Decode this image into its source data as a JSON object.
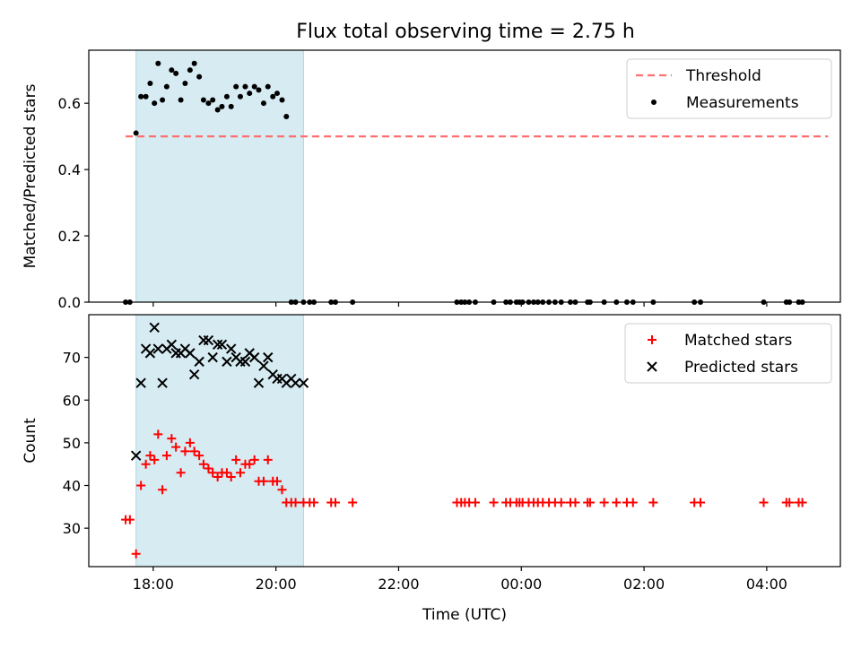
{
  "title": "Flux total observing time = 2.75 h",
  "colors": {
    "shade": "#add8e6",
    "threshold": "#ff6f6f",
    "matched": "#ff0000",
    "predicted": "#000000",
    "measurement": "#000000"
  },
  "chart_data": [
    {
      "type": "scatter",
      "panel": "top",
      "ylabel": "Matched/Predicted stars",
      "ylim": [
        0,
        0.76
      ],
      "yticks": [
        0.0,
        0.2,
        0.4,
        0.6
      ],
      "ytick_labels": [
        "0.0",
        "0.2",
        "0.4",
        "0.6"
      ],
      "xlim_hours": [
        16.95,
        29.2
      ],
      "grid": false,
      "legend": {
        "placement": "top-right",
        "entries": [
          "Threshold",
          "Measurements"
        ]
      },
      "shaded_span_hours": [
        17.72,
        20.45
      ],
      "threshold": {
        "name": "Threshold",
        "value": 0.5,
        "x_hours": [
          17.55,
          29.0
        ]
      },
      "series": [
        {
          "name": "Measurements",
          "x_hours": [
            17.55,
            17.62,
            17.72,
            17.8,
            17.88,
            17.95,
            18.02,
            18.08,
            18.15,
            18.22,
            18.3,
            18.37,
            18.45,
            18.52,
            18.6,
            18.67,
            18.75,
            18.82,
            18.9,
            18.97,
            19.05,
            19.12,
            19.2,
            19.27,
            19.35,
            19.42,
            19.5,
            19.57,
            19.65,
            19.72,
            19.8,
            19.87,
            19.95,
            20.02,
            20.1,
            20.17,
            20.25,
            20.32,
            20.45,
            20.55,
            20.62,
            20.9,
            20.97,
            21.25,
            22.95,
            23.02,
            23.08,
            23.15,
            23.25,
            23.55,
            23.75,
            23.82,
            23.92,
            23.97,
            24.02,
            24.12,
            24.2,
            24.27,
            24.35,
            24.45,
            24.55,
            24.65,
            24.8,
            24.88,
            25.08,
            25.12,
            25.35,
            25.55,
            25.72,
            25.82,
            26.15,
            26.82,
            26.92,
            27.95,
            28.32,
            28.37,
            28.52,
            28.58
          ],
          "y": [
            0,
            0,
            0.51,
            0.62,
            0.62,
            0.66,
            0.6,
            0.72,
            0.61,
            0.65,
            0.7,
            0.69,
            0.61,
            0.66,
            0.7,
            0.72,
            0.68,
            0.61,
            0.6,
            0.61,
            0.58,
            0.59,
            0.62,
            0.59,
            0.65,
            0.62,
            0.65,
            0.63,
            0.65,
            0.64,
            0.6,
            0.65,
            0.62,
            0.63,
            0.61,
            0.56,
            0,
            0,
            0,
            0,
            0,
            0,
            0,
            0,
            0,
            0,
            0,
            0,
            0,
            0,
            0,
            0,
            0,
            0,
            0,
            0,
            0,
            0,
            0,
            0,
            0,
            0,
            0,
            0,
            0,
            0,
            0,
            0,
            0,
            0,
            0,
            0,
            0,
            0,
            0,
            0,
            0,
            0
          ]
        }
      ]
    },
    {
      "type": "scatter",
      "panel": "bottom",
      "xlabel": "Time (UTC)",
      "ylabel": "Count",
      "ylim": [
        21,
        80
      ],
      "yticks": [
        30,
        40,
        50,
        60,
        70
      ],
      "ytick_labels": [
        "30",
        "40",
        "50",
        "60",
        "70"
      ],
      "xlim_hours": [
        16.95,
        29.2
      ],
      "xticks_hours": [
        18,
        20,
        22,
        24,
        26,
        28
      ],
      "xtick_labels": [
        "18:00",
        "20:00",
        "22:00",
        "00:00",
        "02:00",
        "04:00"
      ],
      "grid": false,
      "legend": {
        "placement": "top-right",
        "entries": [
          "Matched stars",
          "Predicted stars"
        ]
      },
      "shaded_span_hours": [
        17.72,
        20.45
      ],
      "series": [
        {
          "name": "Matched stars",
          "x_hours": [
            17.55,
            17.62,
            17.72,
            17.8,
            17.88,
            17.95,
            18.02,
            18.08,
            18.15,
            18.22,
            18.3,
            18.37,
            18.45,
            18.52,
            18.6,
            18.67,
            18.75,
            18.82,
            18.9,
            18.97,
            19.05,
            19.12,
            19.2,
            19.27,
            19.35,
            19.42,
            19.5,
            19.57,
            19.65,
            19.72,
            19.8,
            19.87,
            19.95,
            20.02,
            20.1,
            20.17,
            20.25,
            20.32,
            20.45,
            20.55,
            20.62,
            20.9,
            20.97,
            21.25,
            22.95,
            23.02,
            23.08,
            23.15,
            23.25,
            23.55,
            23.75,
            23.82,
            23.92,
            23.97,
            24.02,
            24.12,
            24.2,
            24.27,
            24.35,
            24.45,
            24.55,
            24.65,
            24.8,
            24.88,
            25.08,
            25.12,
            25.35,
            25.55,
            25.72,
            25.82,
            26.15,
            26.82,
            26.92,
            27.95,
            28.32,
            28.37,
            28.52,
            28.58
          ],
          "y": [
            32,
            32,
            24,
            40,
            45,
            47,
            46,
            52,
            39,
            47,
            51,
            49,
            43,
            48,
            50,
            48,
            47,
            45,
            44,
            43,
            42,
            43,
            43,
            42,
            46,
            43,
            45,
            45,
            46,
            41,
            41,
            46,
            41,
            41,
            39,
            36,
            36,
            36,
            36,
            36,
            36,
            36,
            36,
            36,
            36,
            36,
            36,
            36,
            36,
            36,
            36,
            36,
            36,
            36,
            36,
            36,
            36,
            36,
            36,
            36,
            36,
            36,
            36,
            36,
            36,
            36,
            36,
            36,
            36,
            36,
            36,
            36,
            36,
            36,
            36,
            36,
            36,
            36
          ]
        },
        {
          "name": "Predicted stars",
          "x_hours": [
            17.72,
            17.8,
            17.88,
            17.95,
            18.02,
            18.08,
            18.15,
            18.22,
            18.3,
            18.37,
            18.45,
            18.52,
            18.6,
            18.67,
            18.75,
            18.82,
            18.9,
            18.97,
            19.05,
            19.12,
            19.2,
            19.27,
            19.35,
            19.42,
            19.5,
            19.57,
            19.65,
            19.72,
            19.8,
            19.87,
            19.95,
            20.02,
            20.1,
            20.17,
            20.25,
            20.32,
            20.45
          ],
          "y": [
            47,
            64,
            72,
            71,
            77,
            72,
            64,
            72,
            73,
            71,
            71,
            72,
            71,
            66,
            69,
            74,
            74,
            70,
            73,
            73,
            69,
            72,
            70,
            69,
            69,
            71,
            70,
            64,
            68,
            70,
            66,
            65,
            65,
            64,
            65,
            64,
            64
          ]
        }
      ]
    }
  ]
}
